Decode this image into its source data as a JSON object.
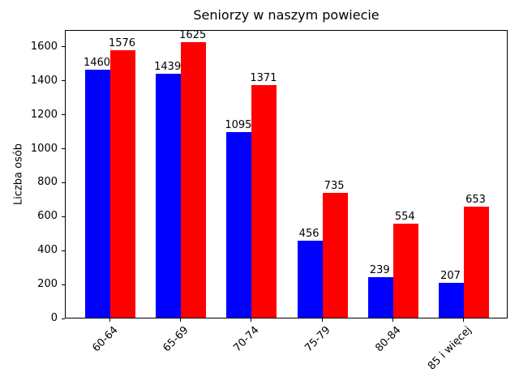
{
  "chart_data": {
    "type": "bar",
    "title": "Seniorzy w naszym powiecie",
    "xlabel": "",
    "ylabel": "Liczba osób",
    "categories": [
      "60-64",
      "65-69",
      "70-74",
      "75-79",
      "80-84",
      "85 i więcej"
    ],
    "series": [
      {
        "name": "series-blue",
        "color": "#0000ff",
        "values": [
          1460,
          1439,
          1095,
          456,
          239,
          207
        ]
      },
      {
        "name": "series-red",
        "color": "#ff0000",
        "values": [
          1576,
          1625,
          1371,
          735,
          554,
          653
        ]
      }
    ],
    "ylim": [
      0,
      1700
    ],
    "yticks": [
      0,
      200,
      400,
      600,
      800,
      1000,
      1200,
      1400,
      1600
    ],
    "grid": false,
    "legend_position": "none",
    "bar_labels_shown": true
  }
}
